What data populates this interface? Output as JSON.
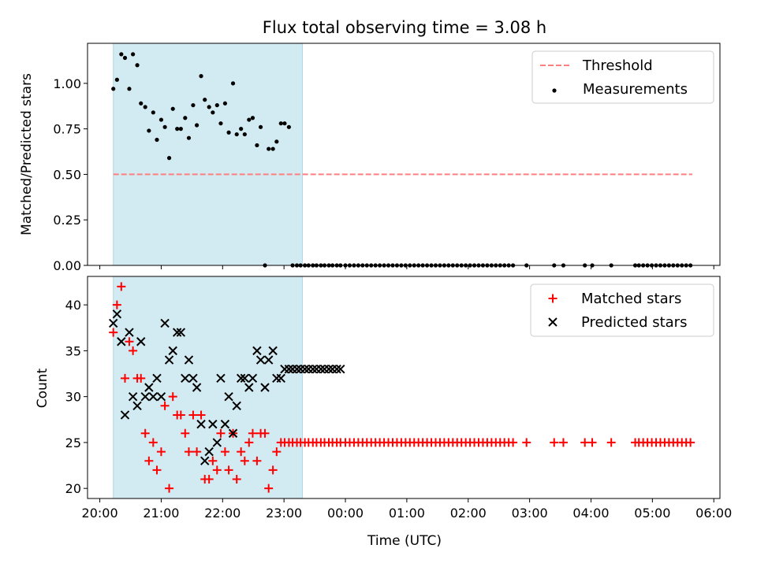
{
  "chart_data": [
    {
      "type": "scatter",
      "title": "Flux total observing time = 3.08 h",
      "xlabel": "",
      "ylabel": "Matched/Predicted stars",
      "ylim": [
        0,
        1.22
      ],
      "xlim": [
        19.8,
        30.1
      ],
      "x_ticks_hours": [
        20,
        21,
        22,
        23,
        24,
        25,
        26,
        27,
        28,
        29,
        30
      ],
      "y_ticks": [
        "0.00",
        "0.25",
        "0.50",
        "0.75",
        "1.00"
      ],
      "y_tick_values": [
        0,
        0.25,
        0.5,
        0.75,
        1.0
      ],
      "shaded_region_hours": [
        20.22,
        23.3
      ],
      "shaded_color": "#add8e6",
      "legend_position": "upper right",
      "threshold": {
        "name": "Threshold",
        "y": 0.5,
        "x_range": [
          20.22,
          29.65
        ],
        "color": "#ff7f7f"
      },
      "series": [
        {
          "name": "Measurements",
          "color": "#000000",
          "marker": "dot",
          "x": [
            20.22,
            20.28,
            20.35,
            20.41,
            20.48,
            20.54,
            20.61,
            20.67,
            20.74,
            20.8,
            20.87,
            20.93,
            21.0,
            21.06,
            21.13,
            21.19,
            21.26,
            21.32,
            21.39,
            21.45,
            21.52,
            21.58,
            21.65,
            21.71,
            21.78,
            21.84,
            21.91,
            21.97,
            22.04,
            22.1,
            22.17,
            22.23,
            22.3,
            22.36,
            22.43,
            22.49,
            22.56,
            22.62,
            22.69,
            22.75,
            22.82,
            22.88,
            22.95,
            23.01,
            23.08,
            23.14,
            23.21,
            23.27,
            23.34,
            23.4,
            23.47,
            23.53,
            23.6,
            23.66,
            23.73,
            23.79,
            23.86,
            23.92,
            24.0,
            24.07,
            24.14,
            24.21,
            24.28,
            24.35,
            24.42,
            24.49,
            24.56,
            24.63,
            24.7,
            24.77,
            24.84,
            24.91,
            24.98,
            25.05,
            25.12,
            25.19,
            25.26,
            25.33,
            25.4,
            25.47,
            25.54,
            25.61,
            25.68,
            25.75,
            25.82,
            25.89,
            25.96,
            26.03,
            26.1,
            26.17,
            26.24,
            26.31,
            26.38,
            26.45,
            26.52,
            26.59,
            26.66,
            26.73,
            26.95,
            27.4,
            27.55,
            27.9,
            28.02,
            28.33,
            28.72,
            28.78,
            28.85,
            28.92,
            28.99,
            29.06,
            29.13,
            29.2,
            29.27,
            29.34,
            29.41,
            29.48,
            29.55,
            29.62
          ],
          "y": [
            0.97,
            1.02,
            1.16,
            1.14,
            0.97,
            1.16,
            1.1,
            0.89,
            0.87,
            0.74,
            0.84,
            0.69,
            0.8,
            0.76,
            0.59,
            0.86,
            0.75,
            0.75,
            0.81,
            0.7,
            0.88,
            0.77,
            1.04,
            0.91,
            0.87,
            0.84,
            0.88,
            0.78,
            0.89,
            0.73,
            1.0,
            0.72,
            0.75,
            0.72,
            0.8,
            0.81,
            0.66,
            0.76,
            0.0,
            0.64,
            0.64,
            0.68,
            0.78,
            0.78,
            0.76,
            0.0,
            0.0,
            0.0,
            0.0,
            0.0,
            0.0,
            0.0,
            0.0,
            0.0,
            0.0,
            0.0,
            0.0,
            0.0,
            0.0,
            0.0,
            0.0,
            0.0,
            0.0,
            0.0,
            0.0,
            0.0,
            0.0,
            0.0,
            0.0,
            0.0,
            0.0,
            0.0,
            0.0,
            0.0,
            0.0,
            0.0,
            0.0,
            0.0,
            0.0,
            0.0,
            0.0,
            0.0,
            0.0,
            0.0,
            0.0,
            0.0,
            0.0,
            0.0,
            0.0,
            0.0,
            0.0,
            0.0,
            0.0,
            0.0,
            0.0,
            0.0,
            0.0,
            0.0,
            0.0,
            0.0,
            0.0,
            0.0,
            0.0,
            0.0,
            0.0,
            0.0,
            0.0,
            0.0,
            0.0,
            0.0,
            0.0,
            0.0,
            0.0,
            0.0,
            0.0,
            0.0,
            0.0,
            0.0
          ]
        }
      ]
    },
    {
      "type": "scatter",
      "title": "",
      "xlabel": "Time (UTC)",
      "ylabel": "Count",
      "ylim": [
        18.9,
        43.1
      ],
      "xlim": [
        19.8,
        30.1
      ],
      "x_ticks_hours": [
        20,
        21,
        22,
        23,
        24,
        25,
        26,
        27,
        28,
        29,
        30
      ],
      "x_ticks": [
        "20:00",
        "21:00",
        "22:00",
        "23:00",
        "00:00",
        "01:00",
        "02:00",
        "03:00",
        "04:00",
        "05:00",
        "06:00"
      ],
      "y_ticks": [
        "20",
        "25",
        "30",
        "35",
        "40"
      ],
      "y_tick_values": [
        20,
        25,
        30,
        35,
        40
      ],
      "shaded_region_hours": [
        20.22,
        23.3
      ],
      "shaded_color": "#add8e6",
      "legend_position": "upper right",
      "series": [
        {
          "name": "Matched stars",
          "color": "#ff0000",
          "marker": "plus",
          "x": [
            20.22,
            20.28,
            20.35,
            20.41,
            20.48,
            20.54,
            20.61,
            20.67,
            20.74,
            20.8,
            20.87,
            20.93,
            21.0,
            21.06,
            21.13,
            21.19,
            21.26,
            21.32,
            21.39,
            21.45,
            21.52,
            21.58,
            21.65,
            21.71,
            21.78,
            21.84,
            21.91,
            21.97,
            22.04,
            22.1,
            22.17,
            22.23,
            22.3,
            22.36,
            22.43,
            22.49,
            22.56,
            22.62,
            22.69,
            22.75,
            22.82,
            22.88,
            22.95,
            23.01,
            23.08,
            23.14,
            23.21,
            23.27,
            23.34,
            23.4,
            23.47,
            23.53,
            23.6,
            23.66,
            23.73,
            23.79,
            23.86,
            23.92,
            24.0,
            24.07,
            24.14,
            24.21,
            24.28,
            24.35,
            24.42,
            24.49,
            24.56,
            24.63,
            24.7,
            24.77,
            24.84,
            24.91,
            24.98,
            25.05,
            25.12,
            25.19,
            25.26,
            25.33,
            25.4,
            25.47,
            25.54,
            25.61,
            25.68,
            25.75,
            25.82,
            25.89,
            25.96,
            26.03,
            26.1,
            26.17,
            26.24,
            26.31,
            26.38,
            26.45,
            26.52,
            26.59,
            26.66,
            26.73,
            26.95,
            27.4,
            27.55,
            27.9,
            28.02,
            28.33,
            28.72,
            28.78,
            28.85,
            28.92,
            28.99,
            29.06,
            29.13,
            29.2,
            29.27,
            29.34,
            29.41,
            29.48,
            29.55,
            29.62
          ],
          "y": [
            37,
            40,
            42,
            32,
            36,
            35,
            32,
            32,
            26,
            23,
            25,
            22,
            24,
            29,
            20,
            30,
            28,
            28,
            26,
            24,
            28,
            24,
            28,
            21,
            21,
            23,
            22,
            26,
            24,
            22,
            26,
            21,
            24,
            23,
            25,
            26,
            23,
            26,
            26,
            20,
            22,
            24,
            25,
            25,
            25,
            25,
            25,
            25,
            25,
            25,
            25,
            25,
            25,
            25,
            25,
            25,
            25,
            25,
            25,
            25,
            25,
            25,
            25,
            25,
            25,
            25,
            25,
            25,
            25,
            25,
            25,
            25,
            25,
            25,
            25,
            25,
            25,
            25,
            25,
            25,
            25,
            25,
            25,
            25,
            25,
            25,
            25,
            25,
            25,
            25,
            25,
            25,
            25,
            25,
            25,
            25,
            25,
            25,
            25,
            25,
            25,
            25,
            25,
            25,
            25,
            25,
            25,
            25,
            25,
            25,
            25,
            25,
            25,
            25,
            25,
            25,
            25,
            25
          ]
        },
        {
          "name": "Predicted stars",
          "color": "#000000",
          "marker": "x",
          "x": [
            20.22,
            20.28,
            20.35,
            20.41,
            20.48,
            20.54,
            20.61,
            20.67,
            20.74,
            20.8,
            20.87,
            20.93,
            21.0,
            21.06,
            21.13,
            21.19,
            21.26,
            21.32,
            21.39,
            21.45,
            21.52,
            21.58,
            21.65,
            21.71,
            21.78,
            21.84,
            21.91,
            21.97,
            22.04,
            22.1,
            22.17,
            22.23,
            22.3,
            22.36,
            22.43,
            22.49,
            22.56,
            22.62,
            22.69,
            22.75,
            22.82,
            22.88,
            22.95,
            23.01,
            23.08,
            23.14,
            23.21,
            23.27,
            23.34,
            23.4,
            23.47,
            23.53,
            23.6,
            23.66,
            23.73,
            23.79,
            23.86,
            23.92
          ],
          "y": [
            38,
            39,
            36,
            28,
            37,
            30,
            29,
            36,
            30,
            31,
            30,
            32,
            30,
            38,
            34,
            35,
            37,
            37,
            32,
            34,
            32,
            31,
            27,
            23,
            24,
            27,
            25,
            32,
            27,
            30,
            26,
            29,
            32,
            32,
            31,
            32,
            35,
            34,
            31,
            34,
            35,
            32,
            32,
            33,
            33,
            33,
            33,
            33,
            33,
            33,
            33,
            33,
            33,
            33,
            33,
            33,
            33,
            33
          ]
        }
      ]
    }
  ]
}
